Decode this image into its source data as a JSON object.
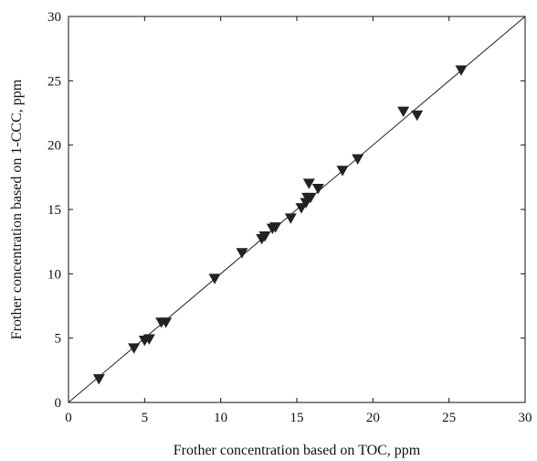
{
  "chart_data": {
    "type": "scatter",
    "title": "",
    "xlabel": "Frother concentration based on TOC, ppm",
    "ylabel": "Frother concentration based on 1-CCC, ppm",
    "xlim": [
      0,
      30
    ],
    "ylim": [
      0,
      30
    ],
    "xticks": [
      0,
      5,
      10,
      15,
      20,
      25,
      30
    ],
    "yticks": [
      0,
      5,
      10,
      15,
      20,
      25,
      30
    ],
    "grid": false,
    "marker": "down-triangle",
    "marker_color": "#222222",
    "reference_line": {
      "type": "y=x",
      "from": 0,
      "to": 30
    },
    "series": [
      {
        "points": [
          {
            "x": 2.0,
            "y": 1.8
          },
          {
            "x": 4.3,
            "y": 4.2
          },
          {
            "x": 5.0,
            "y": 4.8
          },
          {
            "x": 5.3,
            "y": 4.9
          },
          {
            "x": 6.1,
            "y": 6.2
          },
          {
            "x": 6.4,
            "y": 6.2
          },
          {
            "x": 9.6,
            "y": 9.6
          },
          {
            "x": 11.4,
            "y": 11.6
          },
          {
            "x": 12.7,
            "y": 12.7
          },
          {
            "x": 12.9,
            "y": 12.9
          },
          {
            "x": 13.4,
            "y": 13.5
          },
          {
            "x": 13.6,
            "y": 13.6
          },
          {
            "x": 14.6,
            "y": 14.3
          },
          {
            "x": 15.3,
            "y": 15.1
          },
          {
            "x": 15.6,
            "y": 15.5
          },
          {
            "x": 15.7,
            "y": 15.9
          },
          {
            "x": 15.9,
            "y": 15.9
          },
          {
            "x": 15.8,
            "y": 17.0
          },
          {
            "x": 16.4,
            "y": 16.6
          },
          {
            "x": 18.0,
            "y": 18.0
          },
          {
            "x": 19.0,
            "y": 18.9
          },
          {
            "x": 22.0,
            "y": 22.6
          },
          {
            "x": 22.9,
            "y": 22.3
          },
          {
            "x": 25.8,
            "y": 25.8
          }
        ]
      }
    ]
  }
}
